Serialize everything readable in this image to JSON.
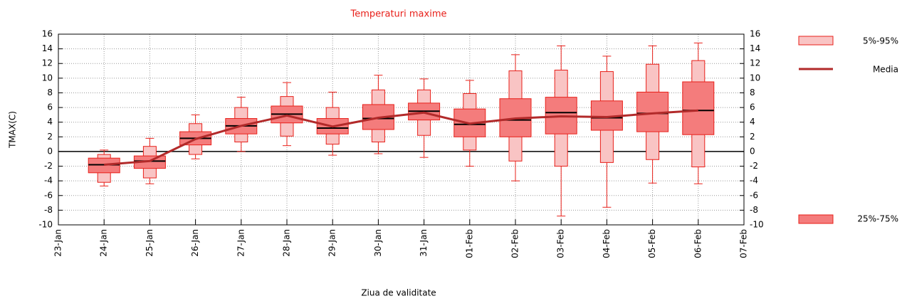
{
  "chart_data": {
    "type": "box",
    "title": "Temperaturi maxime",
    "x_label": "Ziua de validitate",
    "y_label": "TMAX(C)",
    "categories": [
      "23-Jan",
      "24-Jan",
      "25-Jan",
      "26-Jan",
      "27-Jan",
      "28-Jan",
      "29-Jan",
      "30-Jan",
      "31-Jan",
      "01-Feb",
      "02-Feb",
      "03-Feb",
      "04-Feb",
      "05-Feb",
      "06-Feb",
      "07-Feb"
    ],
    "min": [
      null,
      -4.7,
      -4.4,
      -1.0,
      0.0,
      0.8,
      -0.5,
      -0.3,
      -0.8,
      -2.0,
      -4.0,
      -8.8,
      -7.6,
      -4.3,
      -4.4,
      null
    ],
    "max": [
      null,
      0.2,
      1.8,
      5.0,
      7.4,
      9.4,
      8.1,
      10.4,
      9.9,
      9.7,
      13.2,
      14.4,
      13.0,
      14.4,
      14.8,
      null
    ],
    "median": [
      null,
      -1.8,
      -1.3,
      1.8,
      3.5,
      5.1,
      3.2,
      4.5,
      5.5,
      3.7,
      4.3,
      5.3,
      4.6,
      5.2,
      5.6,
      null
    ],
    "series": [
      {
        "name": "5%-95%",
        "color": "#f9c4c4",
        "low": [
          null,
          -4.2,
          -3.6,
          -0.4,
          1.3,
          2.1,
          1.0,
          1.3,
          2.2,
          0.2,
          -1.3,
          -2.0,
          -1.5,
          -1.1,
          -2.1,
          null
        ],
        "high": [
          null,
          -0.4,
          0.7,
          3.8,
          6.0,
          7.5,
          6.0,
          8.4,
          8.4,
          7.9,
          11.0,
          11.1,
          10.9,
          11.9,
          12.4,
          null
        ]
      },
      {
        "name": "25%-75%",
        "color": "#f47c7c",
        "low": [
          null,
          -2.9,
          -2.3,
          0.9,
          2.4,
          3.9,
          2.4,
          3.0,
          4.3,
          2.0,
          2.0,
          2.4,
          2.9,
          2.7,
          2.3,
          null
        ],
        "high": [
          null,
          -0.9,
          -0.6,
          2.7,
          4.5,
          6.2,
          4.5,
          6.4,
          6.6,
          5.8,
          7.2,
          7.4,
          6.9,
          8.1,
          9.5,
          null
        ]
      },
      {
        "name": "Media",
        "color": "#b22a2a",
        "values": [
          null,
          -1.8,
          -1.3,
          1.7,
          3.5,
          4.9,
          3.4,
          4.6,
          5.3,
          3.8,
          4.5,
          4.8,
          4.7,
          5.2,
          5.6,
          null
        ]
      }
    ],
    "ylim": [
      -10,
      16
    ],
    "yticks": [
      -10,
      -8,
      -6,
      -4,
      -2,
      0,
      2,
      4,
      6,
      8,
      10,
      12,
      14,
      16
    ],
    "y2lim": [
      -10,
      16
    ],
    "y2ticks": [
      -10,
      -8,
      -6,
      -4,
      -2,
      0,
      2,
      4,
      6,
      8,
      10,
      12,
      14,
      16
    ],
    "grid": true
  }
}
